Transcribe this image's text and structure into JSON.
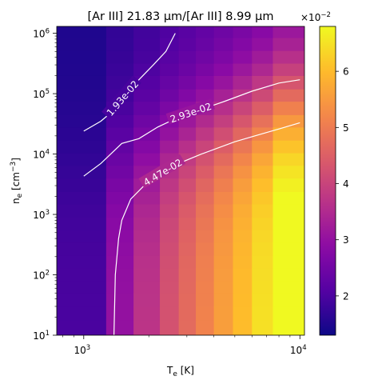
{
  "chart_data": {
    "type": "heatmap",
    "title": "[Ar III] 21.83 μm/[Ar III] 8.99 μm",
    "xlabel": "T",
    "xlabel_sub": "e",
    "xlabel_unit": " [K]",
    "ylabel": "n",
    "ylabel_sub": "e",
    "ylabel_unit": " [cm",
    "ylabel_sup": "−3",
    "ylabel_close": "]",
    "x_scale": "log",
    "y_scale": "log",
    "xlim": [
      750,
      10500
    ],
    "ylim": [
      10,
      1300000
    ],
    "x_ticks": [
      {
        "value": 1000,
        "base": "10",
        "exp": "3"
      },
      {
        "value": 10000,
        "base": "10",
        "exp": "4"
      }
    ],
    "y_ticks": [
      {
        "value": 10,
        "base": "10",
        "exp": "1"
      },
      {
        "value": 100,
        "base": "10",
        "exp": "2"
      },
      {
        "value": 1000,
        "base": "10",
        "exp": "3"
      },
      {
        "value": 10000,
        "base": "10",
        "exp": "4"
      },
      {
        "value": 100000,
        "base": "10",
        "exp": "5"
      },
      {
        "value": 1000000,
        "base": "10",
        "exp": "6"
      }
    ],
    "x_edges": [
      750,
      1270,
      1700,
      2250,
      2750,
      3300,
      4000,
      4900,
      6000,
      7500,
      10500
    ],
    "y_edges": [
      10,
      18,
      30,
      50,
      80,
      130,
      210,
      350,
      560,
      900,
      1500,
      2400,
      4000,
      6500,
      10500,
      17000,
      28000,
      45000,
      75000,
      120000,
      200000,
      320000,
      520000,
      850000,
      1300000
    ],
    "grid": false,
    "colorbar": {
      "vmin": 0.013,
      "vmax": 0.068,
      "ticks": [
        0.02,
        0.03,
        0.04,
        0.05,
        0.06
      ],
      "tick_labels": [
        "2",
        "3",
        "4",
        "5",
        "6"
      ],
      "multiplier_base": "×10",
      "multiplier_exp": "−2",
      "colormap": "plasma"
    },
    "contours": [
      {
        "level": 0.0193,
        "label": "1.93e-02",
        "points": [
          [
            1000,
            24000
          ],
          [
            1200,
            35000
          ],
          [
            1350,
            50000
          ],
          [
            1450,
            70000
          ],
          [
            1580,
            100000
          ],
          [
            1800,
            170000
          ],
          [
            2100,
            300000
          ],
          [
            2400,
            500000
          ],
          [
            2650,
            1000000
          ]
        ]
      },
      {
        "level": 0.0293,
        "label": "2.93e-02",
        "points": [
          [
            1000,
            4300
          ],
          [
            1200,
            7000
          ],
          [
            1500,
            15000
          ],
          [
            1800,
            18000
          ],
          [
            2200,
            28000
          ],
          [
            2800,
            42000
          ],
          [
            3500,
            55000
          ],
          [
            4500,
            75000
          ],
          [
            6000,
            110000
          ],
          [
            8000,
            150000
          ],
          [
            10000,
            170000
          ]
        ]
      },
      {
        "level": 0.0447,
        "label": "4.47e-02",
        "points": [
          [
            1380,
            10
          ],
          [
            1400,
            100
          ],
          [
            1450,
            400
          ],
          [
            1500,
            800
          ],
          [
            1650,
            1800
          ],
          [
            2000,
            3600
          ],
          [
            2700,
            6800
          ],
          [
            3500,
            10000
          ],
          [
            5000,
            16000
          ],
          [
            6500,
            21000
          ],
          [
            8000,
            26000
          ],
          [
            10000,
            33000
          ]
        ]
      }
    ]
  }
}
